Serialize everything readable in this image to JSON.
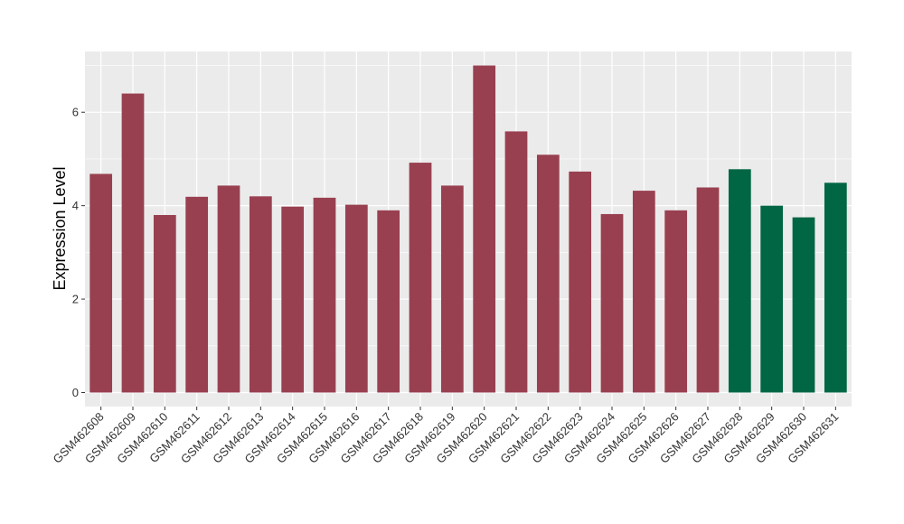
{
  "chart_data": {
    "type": "bar",
    "title": "",
    "xlabel": "",
    "ylabel": "Expression Level",
    "ylim": [
      -0.3,
      7.3
    ],
    "yticks": [
      0,
      2,
      4,
      6
    ],
    "grid": true,
    "legend": "none",
    "categories": [
      "GSM462608",
      "GSM462609",
      "GSM462610",
      "GSM462611",
      "GSM462612",
      "GSM462613",
      "GSM462614",
      "GSM462615",
      "GSM462616",
      "GSM462617",
      "GSM462618",
      "GSM462619",
      "GSM462620",
      "GSM462621",
      "GSM462622",
      "GSM462623",
      "GSM462624",
      "GSM462625",
      "GSM462626",
      "GSM462627",
      "GSM462628",
      "GSM462629",
      "GSM462630",
      "GSM462631"
    ],
    "values": [
      4.68,
      6.4,
      3.8,
      4.19,
      4.43,
      4.2,
      3.98,
      4.17,
      4.02,
      3.9,
      4.92,
      4.43,
      7.0,
      5.59,
      5.09,
      4.73,
      3.82,
      4.32,
      3.9,
      4.39,
      4.78,
      4.0,
      3.75,
      4.49
    ],
    "groups": [
      "a",
      "a",
      "a",
      "a",
      "a",
      "a",
      "a",
      "a",
      "a",
      "a",
      "a",
      "a",
      "a",
      "a",
      "a",
      "a",
      "a",
      "a",
      "a",
      "a",
      "b",
      "b",
      "b",
      "b"
    ],
    "colors": {
      "a": "#994050",
      "b": "#006643"
    },
    "panel_background": "#ebebeb",
    "grid_color": "#ffffff"
  }
}
